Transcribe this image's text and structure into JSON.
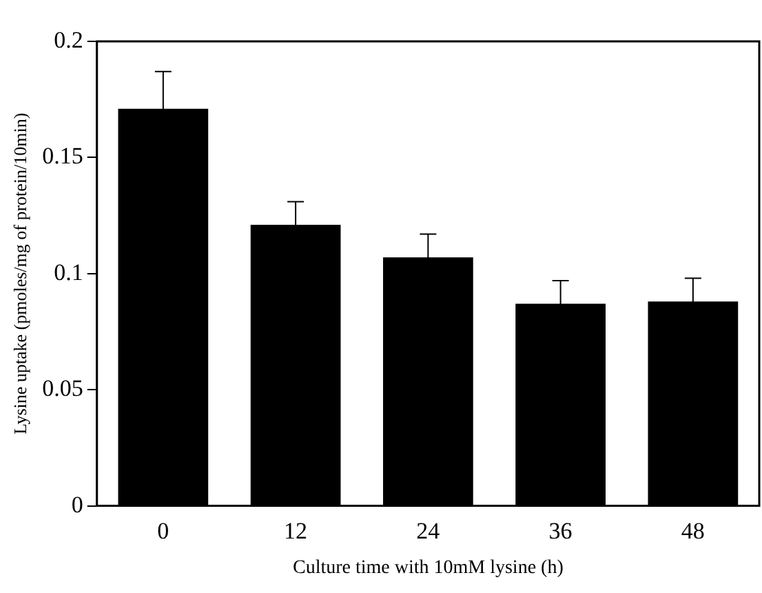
{
  "chart_data": {
    "type": "bar",
    "xlabel": "Culture time with 10mM lysine (h)",
    "ylabel": "Lysine uptake (pmoles/mg of protein/10min)",
    "categories": [
      "0",
      "12",
      "24",
      "36",
      "48"
    ],
    "values": [
      0.171,
      0.121,
      0.107,
      0.087,
      0.088
    ],
    "errors": [
      0.016,
      0.01,
      0.01,
      0.01,
      0.01
    ],
    "color": "#000000",
    "ylim": [
      0,
      0.2
    ],
    "yticks": [
      0,
      0.05,
      0.1,
      0.15,
      0.2
    ],
    "grid": false,
    "legend": false
  }
}
